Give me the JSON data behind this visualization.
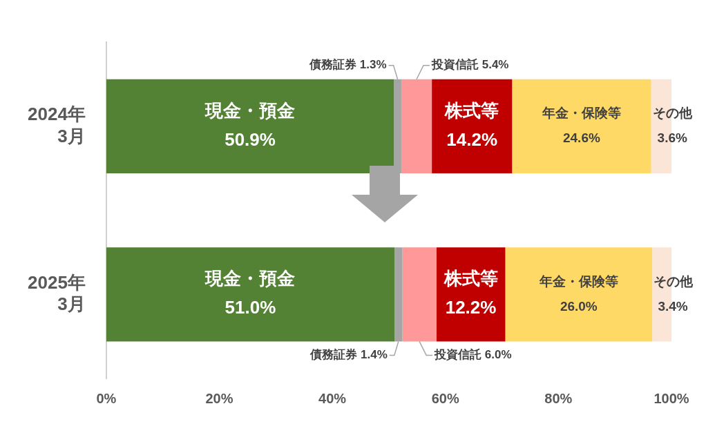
{
  "chart_data": {
    "type": "bar",
    "orientation": "horizontal",
    "stacked": true,
    "categories": [
      "2024年\n3月",
      "2025年\n3月"
    ],
    "xlim": [
      0,
      100
    ],
    "xticks": [
      {
        "value": 0,
        "label": "0%"
      },
      {
        "value": 20,
        "label": "20%"
      },
      {
        "value": 40,
        "label": "40%"
      },
      {
        "value": 60,
        "label": "60%"
      },
      {
        "value": 80,
        "label": "80%"
      },
      {
        "value": 100,
        "label": "100%"
      }
    ],
    "grid": false,
    "legend": false,
    "series": [
      {
        "name": "現金・預金",
        "color": "#548235",
        "values": [
          50.9,
          51.0
        ],
        "value_labels": [
          "50.9%",
          "51.0%"
        ]
      },
      {
        "name": "債務証券",
        "color": "#a5a5a5",
        "values": [
          1.3,
          1.4
        ],
        "value_labels": [
          "1.3%",
          "1.4%"
        ]
      },
      {
        "name": "投資信託",
        "color": "#ff9999",
        "values": [
          5.4,
          6.0
        ],
        "value_labels": [
          "5.4%",
          "6.0%"
        ]
      },
      {
        "name": "株式等",
        "color": "#c00000",
        "values": [
          14.2,
          12.2
        ],
        "value_labels": [
          "14.2%",
          "12.2%"
        ]
      },
      {
        "name": "年金・保険等",
        "color": "#ffd966",
        "values": [
          24.6,
          26.0
        ],
        "value_labels": [
          "24.6%",
          "26.0%"
        ]
      },
      {
        "name": "その他",
        "color": "#fbe5d6",
        "values": [
          3.6,
          3.4
        ],
        "value_labels": [
          "3.6%",
          "3.4%"
        ]
      }
    ]
  }
}
